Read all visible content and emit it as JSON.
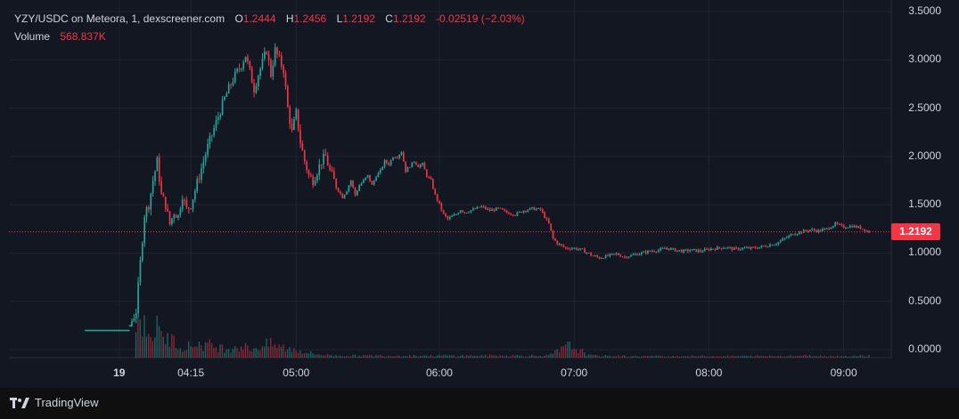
{
  "legend": {
    "symbol": "YZY/USDC on Meteora, 1, dexscreener.com",
    "open_label": "O",
    "open_value": "1.2444",
    "high_label": "H",
    "high_value": "1.2456",
    "low_label": "L",
    "low_value": "1.2192",
    "close_label": "C",
    "close_value": "1.2192",
    "change": "-0.02519 (−2.03%)",
    "volume_label": "Volume",
    "volume_value": "568.837K"
  },
  "price_tag": "1.2192",
  "brand": "TradingView",
  "colors": {
    "background": "#131722",
    "grid": "#1f2430",
    "up": "#26a69a",
    "down": "#f23645",
    "text": "#d1d4dc"
  },
  "chart_data": {
    "type": "candlestick",
    "y_ticks": [
      "3.5000",
      "3.0000",
      "2.5000",
      "2.0000",
      "1.5000",
      "1.0000",
      "0.5000",
      "0.0000"
    ],
    "x_ticks": [
      "19",
      "04:15",
      "05:00",
      "06:00",
      "07:00",
      "08:00",
      "09:00"
    ],
    "ylim": [
      0,
      3.5
    ],
    "last_price": 1.2192,
    "close_path": [
      [
        0,
        0.2
      ],
      [
        10,
        0.2
      ],
      [
        12,
        0.4
      ],
      [
        13,
        0.9
      ],
      [
        14,
        1.4
      ],
      [
        15,
        1.5
      ],
      [
        16,
        1.75
      ],
      [
        17,
        1.95
      ],
      [
        18,
        1.6
      ],
      [
        19,
        1.5
      ],
      [
        20,
        1.3
      ],
      [
        21,
        1.42
      ],
      [
        22,
        1.38
      ],
      [
        23,
        1.6
      ],
      [
        24,
        1.45
      ],
      [
        25,
        1.5
      ],
      [
        27,
        1.8
      ],
      [
        29,
        2.1
      ],
      [
        31,
        2.35
      ],
      [
        33,
        2.6
      ],
      [
        35,
        2.8
      ],
      [
        37,
        2.95
      ],
      [
        38,
        3.05
      ],
      [
        40,
        2.7
      ],
      [
        41,
        2.85
      ],
      [
        43,
        3.1
      ],
      [
        44,
        2.85
      ],
      [
        45,
        3.1
      ],
      [
        46,
        3.0
      ],
      [
        47,
        2.9
      ],
      [
        48,
        2.5
      ],
      [
        49,
        2.25
      ],
      [
        50,
        2.45
      ],
      [
        51,
        2.15
      ],
      [
        52,
        1.95
      ],
      [
        53,
        1.8
      ],
      [
        54,
        1.75
      ],
      [
        55,
        1.85
      ],
      [
        56,
        1.95
      ],
      [
        57,
        2.0
      ],
      [
        58,
        1.85
      ],
      [
        59,
        1.75
      ],
      [
        60,
        1.65
      ],
      [
        61,
        1.58
      ],
      [
        62,
        1.65
      ],
      [
        63,
        1.75
      ],
      [
        64,
        1.6
      ],
      [
        65,
        1.7
      ],
      [
        66,
        1.75
      ],
      [
        67,
        1.8
      ],
      [
        68,
        1.7
      ],
      [
        69,
        1.8
      ],
      [
        70,
        1.85
      ],
      [
        71,
        1.95
      ],
      [
        72,
        1.92
      ],
      [
        73,
        2.0
      ],
      [
        74,
        2.0
      ],
      [
        75,
        2.05
      ],
      [
        76,
        1.85
      ],
      [
        77,
        1.9
      ],
      [
        78,
        1.95
      ],
      [
        79,
        1.9
      ],
      [
        80,
        1.92
      ],
      [
        81,
        1.8
      ],
      [
        82,
        1.75
      ],
      [
        83,
        1.6
      ],
      [
        84,
        1.5
      ],
      [
        85,
        1.4
      ],
      [
        86,
        1.35
      ],
      [
        87,
        1.38
      ],
      [
        88,
        1.4
      ],
      [
        89,
        1.45
      ],
      [
        90,
        1.42
      ],
      [
        92,
        1.45
      ],
      [
        94,
        1.48
      ],
      [
        96,
        1.44
      ],
      [
        98,
        1.46
      ],
      [
        100,
        1.42
      ],
      [
        102,
        1.4
      ],
      [
        104,
        1.44
      ],
      [
        106,
        1.46
      ],
      [
        108,
        1.45
      ],
      [
        110,
        1.3
      ],
      [
        111,
        1.15
      ],
      [
        112,
        1.1
      ],
      [
        114,
        1.05
      ],
      [
        116,
        1.05
      ],
      [
        118,
        1.03
      ],
      [
        120,
        0.98
      ],
      [
        122,
        0.95
      ],
      [
        124,
        0.97
      ],
      [
        126,
        0.99
      ],
      [
        128,
        0.96
      ],
      [
        130,
        0.98
      ],
      [
        132,
        1.0
      ],
      [
        134,
        1.02
      ],
      [
        136,
        1.03
      ],
      [
        138,
        1.05
      ],
      [
        140,
        1.03
      ],
      [
        142,
        1.02
      ],
      [
        144,
        1.03
      ],
      [
        146,
        1.02
      ],
      [
        148,
        1.04
      ],
      [
        150,
        1.05
      ],
      [
        152,
        1.06
      ],
      [
        154,
        1.04
      ],
      [
        156,
        1.05
      ],
      [
        158,
        1.05
      ],
      [
        160,
        1.06
      ],
      [
        162,
        1.08
      ],
      [
        164,
        1.1
      ],
      [
        166,
        1.15
      ],
      [
        168,
        1.2
      ],
      [
        170,
        1.22
      ],
      [
        172,
        1.24
      ],
      [
        174,
        1.23
      ],
      [
        176,
        1.25
      ],
      [
        178,
        1.3
      ],
      [
        180,
        1.27
      ],
      [
        182,
        1.28
      ],
      [
        184,
        1.26
      ],
      [
        186,
        1.22
      ]
    ],
    "volume_ticks": [
      [
        12,
        0.22
      ],
      [
        13,
        0.45
      ],
      [
        14,
        0.3
      ],
      [
        15,
        0.35
      ],
      [
        16,
        0.25
      ],
      [
        17,
        0.28
      ],
      [
        18,
        0.22
      ],
      [
        19,
        0.2
      ],
      [
        20,
        0.18
      ],
      [
        21,
        0.16
      ],
      [
        22,
        0.14
      ],
      [
        23,
        0.12
      ],
      [
        24,
        0.1
      ],
      [
        26,
        0.14
      ],
      [
        28,
        0.13
      ],
      [
        30,
        0.12
      ],
      [
        32,
        0.1
      ],
      [
        34,
        0.1
      ],
      [
        36,
        0.12
      ],
      [
        38,
        0.1
      ],
      [
        40,
        0.09
      ],
      [
        42,
        0.12
      ],
      [
        44,
        0.13
      ],
      [
        46,
        0.11
      ],
      [
        48,
        0.09
      ],
      [
        50,
        0.08
      ],
      [
        52,
        0.06
      ],
      [
        54,
        0.04
      ],
      [
        56,
        0.03
      ],
      [
        60,
        0.02
      ],
      [
        70,
        0.02
      ],
      [
        80,
        0.02
      ],
      [
        90,
        0.02
      ],
      [
        100,
        0.02
      ],
      [
        110,
        0.02
      ],
      [
        115,
        0.12
      ],
      [
        120,
        0.02
      ],
      [
        130,
        0.015
      ],
      [
        140,
        0.015
      ],
      [
        150,
        0.015
      ],
      [
        160,
        0.015
      ],
      [
        170,
        0.02
      ],
      [
        180,
        0.015
      ],
      [
        186,
        0.02
      ]
    ]
  }
}
